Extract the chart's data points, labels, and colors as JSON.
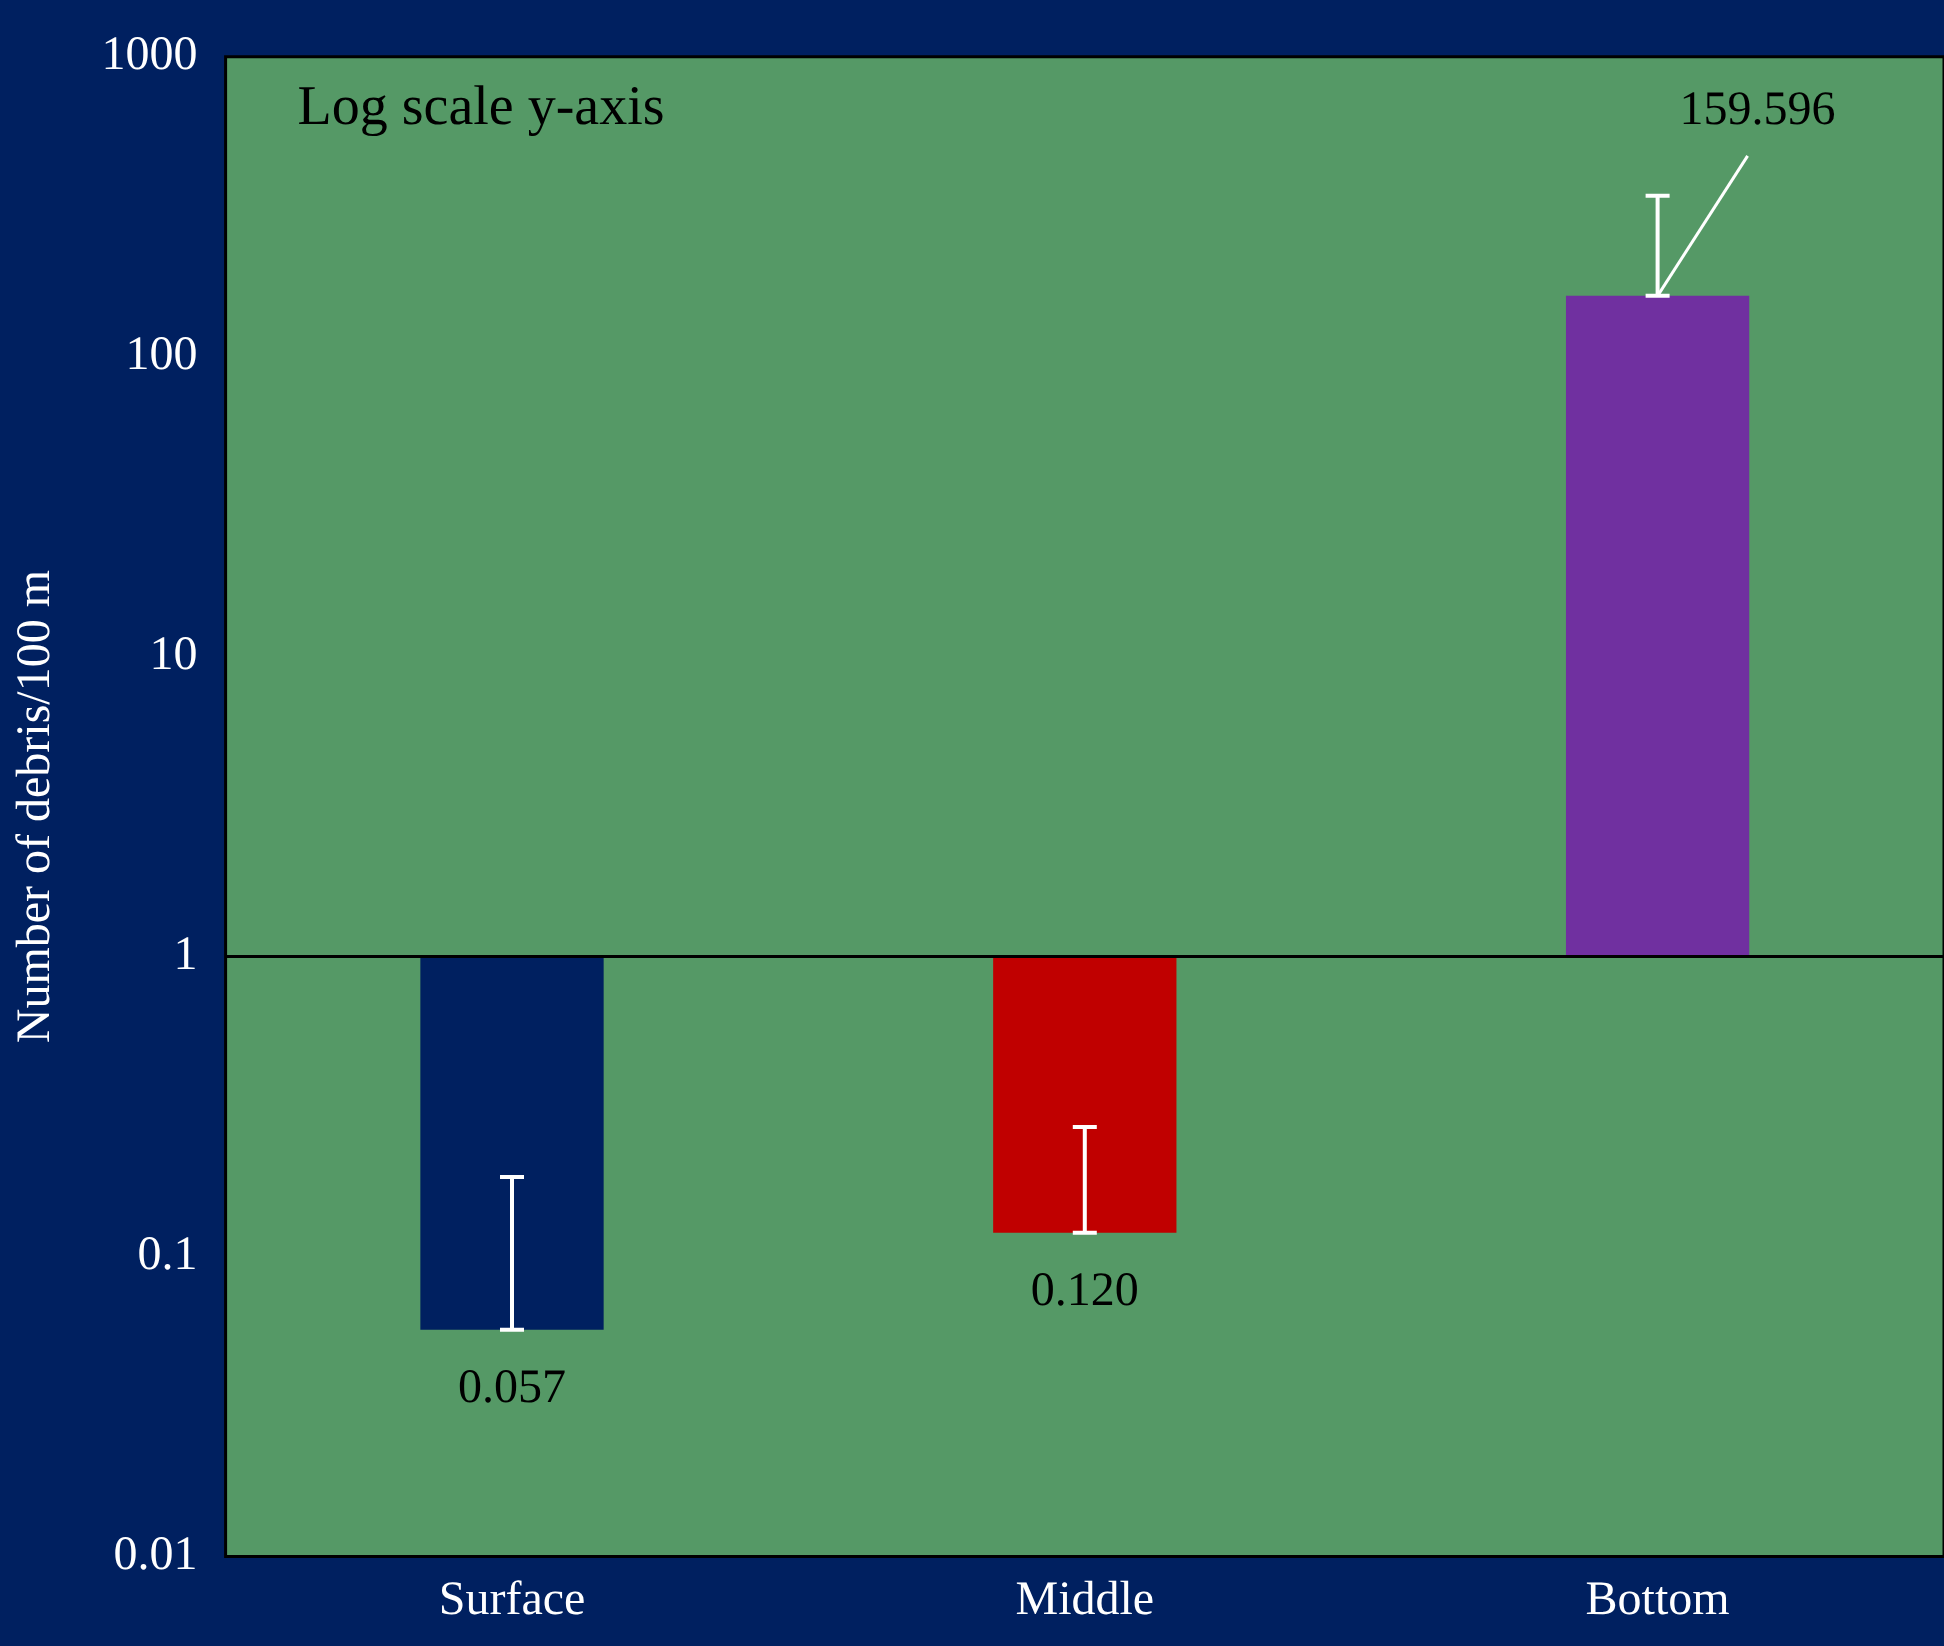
{
  "chart_data": {
    "type": "bar",
    "ylabel": "Number of debris/100 m",
    "annotations": [
      "Log scale y-axis"
    ],
    "categories": [
      "Surface",
      "Middle",
      "Bottom"
    ],
    "values": [
      -0.943,
      -0.88,
      158.596
    ],
    "base": [
      1,
      1,
      1
    ],
    "colors": [
      "#002060",
      "#c00000",
      "#7030a0"
    ],
    "errors": [
      [
        0.057,
        0.184
      ],
      [
        0.12,
        0.27
      ],
      [
        159.596,
        344
      ]
    ],
    "value_labels": [
      "0.057",
      "0.120",
      "159.596"
    ],
    "log": true,
    "ylim": [
      0.01,
      1000
    ],
    "yticks": [
      0.01,
      0.1,
      1,
      10,
      100,
      1000
    ],
    "ref_lines": [
      {
        "axis": "y",
        "value": 1,
        "color": "#000000"
      }
    ],
    "grid": false,
    "legend": false
  }
}
